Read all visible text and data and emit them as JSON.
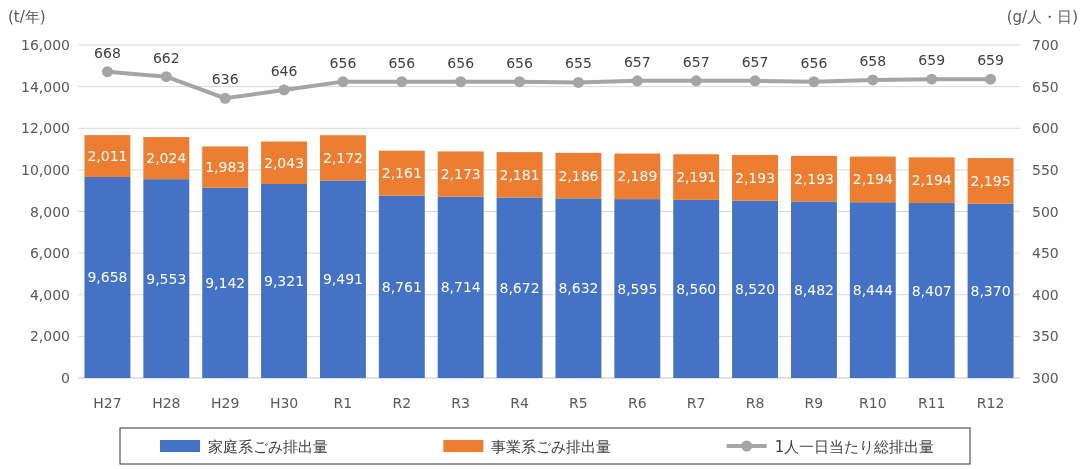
{
  "chart_data": {
    "type": "bar",
    "stacked": true,
    "ylabel": "(t/年)",
    "y2label": "(g/人・日)",
    "categories": [
      "H27",
      "H28",
      "H29",
      "H30",
      "R1",
      "R2",
      "R3",
      "R4",
      "R5",
      "R6",
      "R7",
      "R8",
      "R9",
      "R10",
      "R11",
      "R12"
    ],
    "series": [
      {
        "name": "家庭系ごみ排出量",
        "color": "#4472c4",
        "values": [
          9658,
          9553,
          9142,
          9321,
          9491,
          8761,
          8714,
          8672,
          8632,
          8595,
          8560,
          8520,
          8482,
          8444,
          8407,
          8370
        ],
        "value_labels": [
          "9,658",
          "9,553",
          "9,142",
          "9,321",
          "9,491",
          "8,761",
          "8,714",
          "8,672",
          "8,632",
          "8,595",
          "8,560",
          "8,520",
          "8,482",
          "8,444",
          "8,407",
          "8,370"
        ]
      },
      {
        "name": "事業系ごみ排出量",
        "color": "#ed7d31",
        "values": [
          2011,
          2024,
          1983,
          2043,
          2172,
          2161,
          2173,
          2181,
          2186,
          2189,
          2191,
          2193,
          2193,
          2194,
          2194,
          2195
        ],
        "value_labels": [
          "2,011",
          "2,024",
          "1,983",
          "2,043",
          "2,172",
          "2,161",
          "2,173",
          "2,181",
          "2,186",
          "2,189",
          "2,191",
          "2,193",
          "2,193",
          "2,194",
          "2,194",
          "2,195"
        ]
      },
      {
        "name": "1人一日当たり総排出量",
        "type": "line",
        "axis": "y2",
        "marker": "circle",
        "color": "#a5a5a5",
        "values": [
          668,
          662,
          636,
          646,
          656,
          656,
          656,
          656,
          655,
          657,
          657,
          657,
          656,
          658,
          659,
          659
        ],
        "value_labels": [
          "668",
          "662",
          "636",
          "646",
          "656",
          "656",
          "656",
          "656",
          "655",
          "657",
          "657",
          "657",
          "656",
          "658",
          "659",
          "659"
        ]
      }
    ],
    "ylim": [
      0,
      16000
    ],
    "yticks": [
      0,
      {
        "value": 2000,
        "label": "2,000"
      },
      {
        "value": 4000,
        "label": "4,000"
      },
      {
        "value": 6000,
        "label": "6,000"
      },
      {
        "value": 8000,
        "label": "8,000"
      },
      {
        "value": 10000,
        "label": "10,000"
      },
      {
        "value": 12000,
        "label": "12,000"
      },
      {
        "value": 14000,
        "label": "14,000"
      },
      {
        "value": 16000,
        "label": "16,000"
      }
    ],
    "y2lim": [
      300,
      700
    ],
    "y2ticks": [
      300,
      350,
      400,
      450,
      500,
      550,
      600,
      650,
      700
    ],
    "grid": "y",
    "legend": "bottom"
  }
}
